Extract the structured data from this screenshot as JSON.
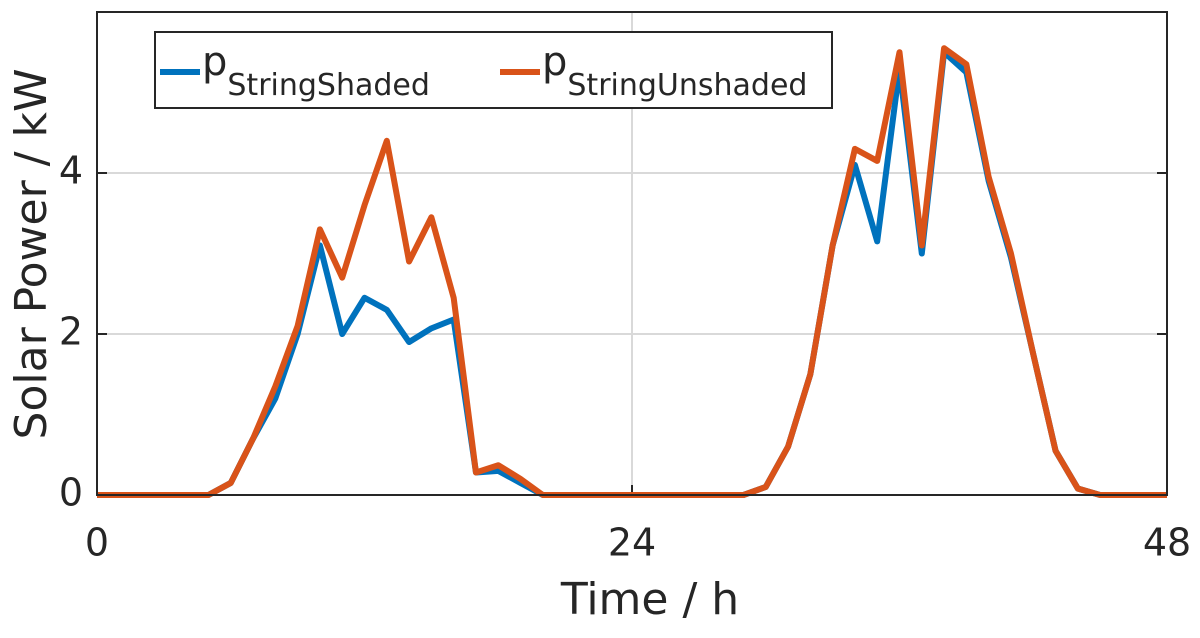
{
  "chart_data": {
    "type": "line",
    "x_label": "Time / h",
    "y_label": "Solar Power / kW",
    "x": [
      0,
      1,
      2,
      3,
      4,
      5,
      6,
      7,
      8,
      9,
      10,
      11,
      12,
      13,
      14,
      15,
      16,
      17,
      18,
      19,
      20,
      21,
      22,
      23,
      24,
      25,
      26,
      27,
      28,
      29,
      30,
      31,
      32,
      33,
      34,
      35,
      36,
      37,
      38,
      39,
      40,
      41,
      42,
      43,
      44,
      45,
      46,
      47,
      48
    ],
    "series": [
      {
        "name": "pStringShaded",
        "color": "#0072bd",
        "values": [
          0,
          0,
          0,
          0,
          0,
          0,
          0.15,
          0.7,
          1.2,
          2.0,
          3.1,
          2.0,
          2.45,
          2.3,
          1.9,
          2.07,
          2.18,
          0.28,
          0.3,
          0.15,
          0,
          0,
          0,
          0,
          0,
          0,
          0,
          0,
          0,
          0,
          0.1,
          0.6,
          1.5,
          3.1,
          4.1,
          3.15,
          5.3,
          3.0,
          5.5,
          5.25,
          3.9,
          2.95,
          1.75,
          0.55,
          0.08,
          0,
          0,
          0,
          0
        ]
      },
      {
        "name": "pStringUnshaded",
        "color": "#d95319",
        "values": [
          0,
          0,
          0,
          0,
          0,
          0,
          0.15,
          0.7,
          1.35,
          2.1,
          3.3,
          2.7,
          3.6,
          4.4,
          2.9,
          3.45,
          2.45,
          0.28,
          0.37,
          0.2,
          0,
          0,
          0,
          0,
          0,
          0,
          0,
          0,
          0,
          0,
          0.1,
          0.6,
          1.5,
          3.1,
          4.3,
          4.15,
          5.5,
          3.1,
          5.55,
          5.35,
          3.95,
          3.0,
          1.75,
          0.55,
          0.08,
          0,
          0,
          0,
          0
        ]
      }
    ],
    "xlim": [
      0,
      48
    ],
    "xticks": [
      0,
      24,
      48
    ],
    "ylim": [
      0,
      6
    ],
    "yticks": [
      0,
      2,
      4
    ],
    "grid": true,
    "legend": "top-left"
  }
}
